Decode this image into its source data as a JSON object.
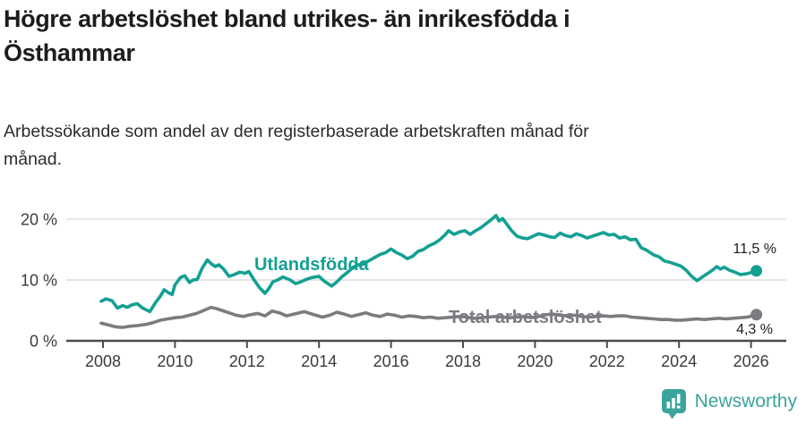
{
  "title": {
    "lines": [
      "Högre arbetslöshet bland utrikes- än inrikesfödda i",
      "Östhammar"
    ]
  },
  "subtitle": {
    "lines": [
      "Arbetssökande som andel av den registerbaserade arbetskraften månad för",
      "månad."
    ]
  },
  "branding": {
    "logo_text": "Newsworthy",
    "logo_icon": "newsworthy-bar-chart-pin",
    "brand_color": "#3ba49d"
  },
  "colors": {
    "foreign_born_line": "#13a093",
    "total_line": "#7b7b80",
    "grid": "#dedede",
    "axis": "#4a4a4a",
    "tick_text": "#3b3b3b",
    "title_text": "#1d1b1b",
    "value_text": "#1c1c1c"
  },
  "chart_data": {
    "type": "line",
    "unit": "%",
    "grid": "horizontal-only",
    "legend_position": "inline-on-lines",
    "x_axis": {
      "ticks": [
        2008,
        2010,
        2012,
        2014,
        2016,
        2018,
        2020,
        2022,
        2024,
        2026
      ],
      "range": [
        2007.0,
        2027.0
      ]
    },
    "y_axis": {
      "ticks": [
        {
          "value": 0,
          "label": "0 %"
        },
        {
          "value": 10,
          "label": "10 %"
        },
        {
          "value": 20,
          "label": "20 %"
        }
      ],
      "range": [
        0,
        22
      ]
    },
    "series": [
      {
        "id": "utlandsfodda",
        "name": "Utlandsfödda",
        "color": "#13a093",
        "end_label": "11,5 %",
        "end_value": 11.5,
        "points": [
          [
            2007.95,
            6.5
          ],
          [
            2008.08,
            6.9
          ],
          [
            2008.25,
            6.6
          ],
          [
            2008.4,
            5.4
          ],
          [
            2008.55,
            5.8
          ],
          [
            2008.67,
            5.5
          ],
          [
            2008.8,
            5.9
          ],
          [
            2008.95,
            6.1
          ],
          [
            2009.1,
            5.4
          ],
          [
            2009.3,
            4.8
          ],
          [
            2009.45,
            6.2
          ],
          [
            2009.6,
            7.4
          ],
          [
            2009.7,
            8.4
          ],
          [
            2009.82,
            7.9
          ],
          [
            2009.92,
            7.6
          ],
          [
            2010.0,
            9.2
          ],
          [
            2010.15,
            10.4
          ],
          [
            2010.27,
            10.7
          ],
          [
            2010.4,
            9.6
          ],
          [
            2010.5,
            10.0
          ],
          [
            2010.62,
            10.1
          ],
          [
            2010.75,
            11.9
          ],
          [
            2010.9,
            13.3
          ],
          [
            2011.0,
            12.7
          ],
          [
            2011.12,
            12.2
          ],
          [
            2011.22,
            12.5
          ],
          [
            2011.35,
            11.8
          ],
          [
            2011.5,
            10.6
          ],
          [
            2011.65,
            10.9
          ],
          [
            2011.8,
            11.3
          ],
          [
            2011.95,
            11.1
          ],
          [
            2012.05,
            11.4
          ],
          [
            2012.2,
            10.0
          ],
          [
            2012.35,
            8.7
          ],
          [
            2012.5,
            7.8
          ],
          [
            2012.62,
            8.7
          ],
          [
            2012.72,
            9.7
          ],
          [
            2012.85,
            10.0
          ],
          [
            2013.0,
            10.5
          ],
          [
            2013.2,
            10.0
          ],
          [
            2013.35,
            9.4
          ],
          [
            2013.5,
            9.7
          ],
          [
            2013.65,
            10.1
          ],
          [
            2013.8,
            10.4
          ],
          [
            2014.0,
            10.6
          ],
          [
            2014.15,
            9.8
          ],
          [
            2014.35,
            9.0
          ],
          [
            2014.5,
            9.7
          ],
          [
            2014.65,
            10.6
          ],
          [
            2014.8,
            11.3
          ],
          [
            2014.95,
            12.1
          ],
          [
            2015.1,
            12.5
          ],
          [
            2015.25,
            12.7
          ],
          [
            2015.4,
            13.2
          ],
          [
            2015.55,
            13.7
          ],
          [
            2015.7,
            14.2
          ],
          [
            2015.85,
            14.5
          ],
          [
            2016.0,
            15.1
          ],
          [
            2016.15,
            14.5
          ],
          [
            2016.3,
            14.1
          ],
          [
            2016.45,
            13.5
          ],
          [
            2016.6,
            13.9
          ],
          [
            2016.75,
            14.7
          ],
          [
            2016.9,
            15.0
          ],
          [
            2017.05,
            15.6
          ],
          [
            2017.2,
            16.0
          ],
          [
            2017.35,
            16.6
          ],
          [
            2017.5,
            17.4
          ],
          [
            2017.6,
            18.1
          ],
          [
            2017.75,
            17.5
          ],
          [
            2017.9,
            17.9
          ],
          [
            2018.05,
            18.1
          ],
          [
            2018.2,
            17.5
          ],
          [
            2018.35,
            18.1
          ],
          [
            2018.5,
            18.6
          ],
          [
            2018.65,
            19.3
          ],
          [
            2018.8,
            20.0
          ],
          [
            2018.92,
            20.6
          ],
          [
            2019.0,
            19.7
          ],
          [
            2019.1,
            20.1
          ],
          [
            2019.25,
            18.9
          ],
          [
            2019.35,
            18.1
          ],
          [
            2019.5,
            17.2
          ],
          [
            2019.65,
            16.9
          ],
          [
            2019.8,
            16.8
          ],
          [
            2019.95,
            17.2
          ],
          [
            2020.1,
            17.6
          ],
          [
            2020.25,
            17.4
          ],
          [
            2020.4,
            17.1
          ],
          [
            2020.55,
            17.0
          ],
          [
            2020.7,
            17.7
          ],
          [
            2020.85,
            17.3
          ],
          [
            2021.0,
            17.1
          ],
          [
            2021.15,
            17.6
          ],
          [
            2021.3,
            17.3
          ],
          [
            2021.45,
            16.9
          ],
          [
            2021.6,
            17.2
          ],
          [
            2021.75,
            17.5
          ],
          [
            2021.9,
            17.8
          ],
          [
            2022.05,
            17.4
          ],
          [
            2022.2,
            17.5
          ],
          [
            2022.35,
            16.9
          ],
          [
            2022.5,
            17.1
          ],
          [
            2022.65,
            16.6
          ],
          [
            2022.8,
            16.7
          ],
          [
            2022.95,
            15.3
          ],
          [
            2023.1,
            14.9
          ],
          [
            2023.3,
            14.1
          ],
          [
            2023.45,
            13.8
          ],
          [
            2023.6,
            13.1
          ],
          [
            2023.75,
            12.9
          ],
          [
            2023.9,
            12.6
          ],
          [
            2024.05,
            12.3
          ],
          [
            2024.2,
            11.6
          ],
          [
            2024.35,
            10.6
          ],
          [
            2024.5,
            9.9
          ],
          [
            2024.6,
            10.3
          ],
          [
            2024.7,
            10.7
          ],
          [
            2024.85,
            11.3
          ],
          [
            2024.95,
            11.7
          ],
          [
            2025.05,
            12.2
          ],
          [
            2025.15,
            11.8
          ],
          [
            2025.25,
            12.1
          ],
          [
            2025.4,
            11.6
          ],
          [
            2025.55,
            11.3
          ],
          [
            2025.7,
            10.9
          ],
          [
            2025.85,
            11.0
          ],
          [
            2026.0,
            11.2
          ],
          [
            2026.15,
            11.5
          ]
        ]
      },
      {
        "id": "total",
        "name": "Total arbetslöshet",
        "color": "#7b7b80",
        "end_label": "4,3 %",
        "end_value": 4.3,
        "points": [
          [
            2007.95,
            2.9
          ],
          [
            2008.15,
            2.6
          ],
          [
            2008.35,
            2.3
          ],
          [
            2008.55,
            2.2
          ],
          [
            2008.75,
            2.4
          ],
          [
            2008.95,
            2.5
          ],
          [
            2009.2,
            2.7
          ],
          [
            2009.4,
            3.0
          ],
          [
            2009.6,
            3.4
          ],
          [
            2009.8,
            3.6
          ],
          [
            2010.0,
            3.8
          ],
          [
            2010.2,
            3.9
          ],
          [
            2010.4,
            4.2
          ],
          [
            2010.6,
            4.5
          ],
          [
            2010.8,
            5.0
          ],
          [
            2011.0,
            5.5
          ],
          [
            2011.15,
            5.3
          ],
          [
            2011.3,
            5.0
          ],
          [
            2011.5,
            4.6
          ],
          [
            2011.7,
            4.2
          ],
          [
            2011.9,
            4.0
          ],
          [
            2012.1,
            4.3
          ],
          [
            2012.3,
            4.5
          ],
          [
            2012.5,
            4.1
          ],
          [
            2012.7,
            4.9
          ],
          [
            2012.9,
            4.6
          ],
          [
            2013.1,
            4.1
          ],
          [
            2013.3,
            4.4
          ],
          [
            2013.6,
            4.8
          ],
          [
            2013.8,
            4.4
          ],
          [
            2014.1,
            3.9
          ],
          [
            2014.3,
            4.2
          ],
          [
            2014.5,
            4.7
          ],
          [
            2014.7,
            4.4
          ],
          [
            2014.9,
            4.0
          ],
          [
            2015.1,
            4.3
          ],
          [
            2015.3,
            4.6
          ],
          [
            2015.5,
            4.2
          ],
          [
            2015.7,
            4.0
          ],
          [
            2015.9,
            4.4
          ],
          [
            2016.1,
            4.2
          ],
          [
            2016.3,
            3.9
          ],
          [
            2016.5,
            4.1
          ],
          [
            2016.7,
            4.0
          ],
          [
            2016.9,
            3.8
          ],
          [
            2017.1,
            3.9
          ],
          [
            2017.3,
            3.7
          ],
          [
            2017.5,
            3.8
          ],
          [
            2017.7,
            3.9
          ],
          [
            2017.9,
            4.0
          ],
          [
            2018.1,
            3.9
          ],
          [
            2018.3,
            3.7
          ],
          [
            2018.5,
            3.8
          ],
          [
            2018.7,
            3.9
          ],
          [
            2018.9,
            4.0
          ],
          [
            2019.1,
            3.9
          ],
          [
            2019.3,
            3.8
          ],
          [
            2019.5,
            3.9
          ],
          [
            2019.7,
            4.0
          ],
          [
            2019.9,
            3.8
          ],
          [
            2020.1,
            4.0
          ],
          [
            2020.3,
            4.3
          ],
          [
            2020.5,
            4.4
          ],
          [
            2020.7,
            4.2
          ],
          [
            2020.9,
            4.1
          ],
          [
            2021.1,
            4.2
          ],
          [
            2021.3,
            4.0
          ],
          [
            2021.5,
            3.9
          ],
          [
            2021.7,
            4.0
          ],
          [
            2021.9,
            4.1
          ],
          [
            2022.1,
            4.0
          ],
          [
            2022.3,
            4.1
          ],
          [
            2022.5,
            4.1
          ],
          [
            2022.7,
            3.9
          ],
          [
            2022.9,
            3.8
          ],
          [
            2023.1,
            3.7
          ],
          [
            2023.3,
            3.6
          ],
          [
            2023.5,
            3.5
          ],
          [
            2023.7,
            3.5
          ],
          [
            2023.9,
            3.4
          ],
          [
            2024.1,
            3.4
          ],
          [
            2024.3,
            3.5
          ],
          [
            2024.5,
            3.6
          ],
          [
            2024.7,
            3.5
          ],
          [
            2024.9,
            3.6
          ],
          [
            2025.1,
            3.7
          ],
          [
            2025.3,
            3.6
          ],
          [
            2025.5,
            3.7
          ],
          [
            2025.7,
            3.8
          ],
          [
            2025.9,
            3.9
          ],
          [
            2026.15,
            4.3
          ]
        ]
      }
    ]
  }
}
